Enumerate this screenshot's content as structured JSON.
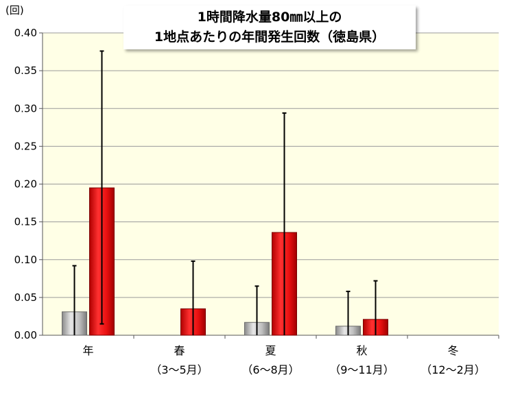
{
  "chart_data": {
    "type": "bar",
    "title": [
      "1時間降水量80㎜以上の",
      "1地点あたりの年間発生回数（徳島県）"
    ],
    "y_unit": "(回)",
    "ylim": [
      0,
      0.4
    ],
    "yticks": [
      "0.00",
      "0.05",
      "0.10",
      "0.15",
      "0.20",
      "0.25",
      "0.30",
      "0.35",
      "0.40"
    ],
    "categories": [
      {
        "line1": "年",
        "line2": ""
      },
      {
        "line1": "春",
        "line2": "（3～5月）"
      },
      {
        "line1": "夏",
        "line2": "（6～8月）"
      },
      {
        "line1": "秋",
        "line2": "（9～11月）"
      },
      {
        "line1": "冬",
        "line2": "（12～2月）"
      }
    ],
    "series": [
      {
        "color": "#b8b8b8",
        "values": [
          0.031,
          0.0,
          0.017,
          0.012,
          0.0
        ],
        "err_low": [
          0.0,
          0.0,
          0.0,
          0.0,
          0.0
        ],
        "err_high": [
          0.092,
          0.0,
          0.065,
          0.058,
          0.0
        ]
      },
      {
        "color": "#e81010",
        "values": [
          0.195,
          0.035,
          0.136,
          0.021,
          0.0
        ],
        "err_low": [
          0.015,
          0.0,
          0.0,
          0.0,
          0.0
        ],
        "err_high": [
          0.376,
          0.098,
          0.294,
          0.072,
          0.0
        ]
      }
    ],
    "grid": true,
    "plot_background": "#ffffe6",
    "legend": "none"
  }
}
